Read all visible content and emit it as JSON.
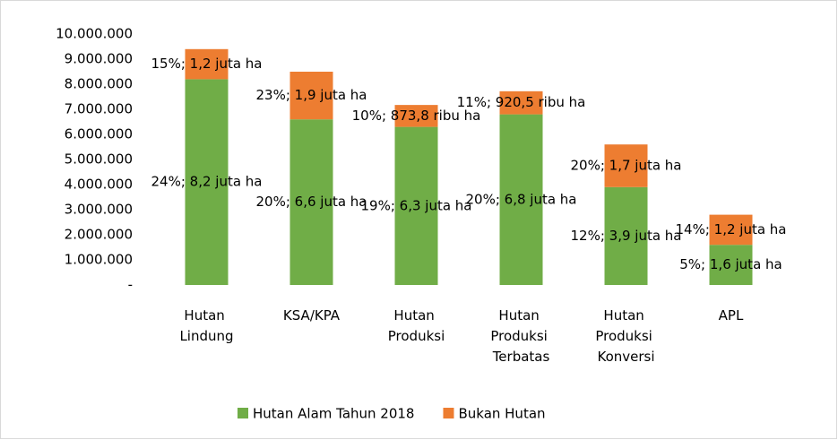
{
  "chart_data": {
    "type": "stacked_bar",
    "categories": [
      "Hutan Lindung",
      "KSA/KPA",
      "Hutan Produksi",
      "Hutan Produksi Terbatas",
      "Hutan Produksi Konversi",
      "APL"
    ],
    "series": [
      {
        "name": "Hutan Alam Tahun 2018",
        "color": "#70ad47",
        "values": [
          8200000,
          6600000,
          6300000,
          6800000,
          3900000,
          1600000
        ],
        "value_labels": [
          "24%; 8,2 juta ha",
          "20%; 6,6 juta ha",
          "19%; 6,3 juta ha",
          "20%; 6,8 juta ha",
          "12%; 3,9 juta ha",
          "5%; 1,6 juta ha"
        ]
      },
      {
        "name": "Bukan Hutan",
        "color": "#ed7d31",
        "values": [
          1200000,
          1900000,
          873800,
          920500,
          1700000,
          1200000
        ],
        "value_labels": [
          "15%; 1,2 juta ha",
          "23%; 1,9 juta ha",
          "10%; 873,8 ribu ha",
          "11%; 920,5 ribu ha",
          "20%; 1,7 juta ha",
          "14%; 1,2 juta ha"
        ]
      }
    ],
    "ylim": [
      0,
      10000000
    ],
    "yticks": [
      {
        "value": 0,
        "label": "-"
      },
      {
        "value": 1000000,
        "label": "1.000.000"
      },
      {
        "value": 2000000,
        "label": "2.000.000"
      },
      {
        "value": 3000000,
        "label": "3.000.000"
      },
      {
        "value": 4000000,
        "label": "4.000.000"
      },
      {
        "value": 5000000,
        "label": "5.000.000"
      },
      {
        "value": 6000000,
        "label": "6.000.000"
      },
      {
        "value": 7000000,
        "label": "7.000.000"
      },
      {
        "value": 8000000,
        "label": "8.000.000"
      },
      {
        "value": 9000000,
        "label": "9.000.000"
      },
      {
        "value": 10000000,
        "label": "10.000.000"
      }
    ],
    "legend": "bottom"
  }
}
